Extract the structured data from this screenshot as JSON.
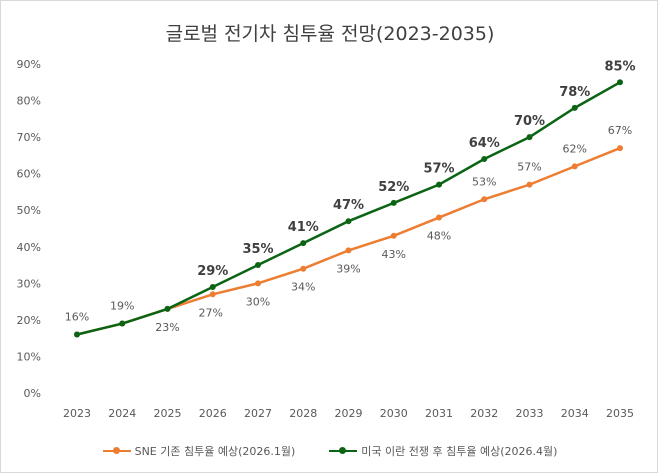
{
  "chart_data": {
    "type": "line",
    "title": "글로벌 전기차 침투율 전망(2023-2035)",
    "categories": [
      "2023",
      "2024",
      "2025",
      "2026",
      "2027",
      "2028",
      "2029",
      "2030",
      "2031",
      "2032",
      "2033",
      "2034",
      "2035"
    ],
    "ylim": [
      0,
      90
    ],
    "yticks": [
      "0%",
      "10%",
      "20%",
      "30%",
      "40%",
      "50%",
      "60%",
      "70%",
      "80%",
      "90%"
    ],
    "grid": false,
    "legend": "bottom",
    "series": [
      {
        "name": "SNE 기존 침투율 예상(2026.1월)",
        "color": "#ed7d31",
        "values": [
          16,
          19,
          23,
          27,
          30,
          34,
          39,
          43,
          48,
          53,
          57,
          62,
          67
        ],
        "labels": [
          "16%",
          "19%",
          "23%",
          "27%",
          "30%",
          "34%",
          "39%",
          "43%",
          "48%",
          "53%",
          "57%",
          "62%",
          "67%"
        ]
      },
      {
        "name": "미국 이란 전쟁 후 침투율 예상(2026.4월)",
        "color": "#0b6414",
        "values": [
          16,
          19,
          23,
          29,
          35,
          41,
          47,
          52,
          57,
          64,
          70,
          78,
          85
        ],
        "labels": [
          "",
          "",
          "",
          "29%",
          "35%",
          "41%",
          "47%",
          "52%",
          "57%",
          "64%",
          "70%",
          "78%",
          "85%"
        ]
      }
    ]
  }
}
